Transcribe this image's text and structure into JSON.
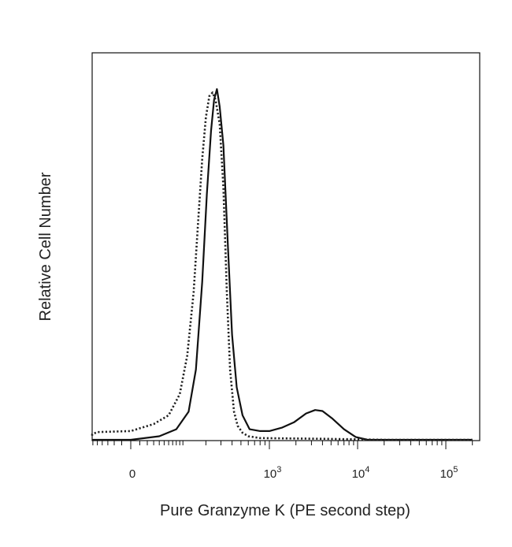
{
  "chart_data": {
    "type": "line",
    "title": "",
    "xlabel": "Pure Granzyme K (PE second step)",
    "ylabel": "Relative Cell Number",
    "x_scale": "biexponential",
    "y_ticks_visible": false,
    "grid": false,
    "legend": "none",
    "ylim": [
      0,
      1
    ],
    "x_ticks": [
      {
        "value": 0,
        "base": "0",
        "exp": ""
      },
      {
        "value": 1000,
        "base": "10",
        "exp": "3"
      },
      {
        "value": 10000,
        "base": "10",
        "exp": "4"
      },
      {
        "value": 100000,
        "base": "10",
        "exp": "5"
      }
    ],
    "series": [
      {
        "style": "solid",
        "color": "#111111",
        "points": [
          [
            -300,
            0.0
          ],
          [
            0,
            0.0
          ],
          [
            40,
            0.01
          ],
          [
            80,
            0.03
          ],
          [
            120,
            0.08
          ],
          [
            150,
            0.2
          ],
          [
            180,
            0.45
          ],
          [
            205,
            0.7
          ],
          [
            230,
            0.88
          ],
          [
            250,
            0.97
          ],
          [
            270,
            1.0
          ],
          [
            290,
            0.95
          ],
          [
            320,
            0.84
          ],
          [
            360,
            0.55
          ],
          [
            400,
            0.3
          ],
          [
            450,
            0.15
          ],
          [
            520,
            0.07
          ],
          [
            620,
            0.03
          ],
          [
            800,
            0.025
          ],
          [
            1000,
            0.025
          ],
          [
            1400,
            0.035
          ],
          [
            1900,
            0.05
          ],
          [
            2600,
            0.075
          ],
          [
            3300,
            0.085
          ],
          [
            4000,
            0.082
          ],
          [
            5200,
            0.06
          ],
          [
            7000,
            0.03
          ],
          [
            9500,
            0.008
          ],
          [
            13000,
            0.0
          ],
          [
            200000,
            0.0
          ]
        ]
      },
      {
        "style": "dotted",
        "color": "#222222",
        "points": [
          [
            -300,
            0.012
          ],
          [
            -150,
            0.012
          ],
          [
            -100,
            0.016
          ],
          [
            -50,
            0.022
          ],
          [
            0,
            0.025
          ],
          [
            30,
            0.045
          ],
          [
            60,
            0.07
          ],
          [
            90,
            0.13
          ],
          [
            115,
            0.24
          ],
          [
            140,
            0.42
          ],
          [
            160,
            0.62
          ],
          [
            180,
            0.8
          ],
          [
            200,
            0.92
          ],
          [
            220,
            0.98
          ],
          [
            240,
            0.99
          ],
          [
            260,
            0.97
          ],
          [
            290,
            0.9
          ],
          [
            320,
            0.72
          ],
          [
            350,
            0.42
          ],
          [
            380,
            0.2
          ],
          [
            420,
            0.08
          ],
          [
            460,
            0.04
          ],
          [
            520,
            0.02
          ],
          [
            600,
            0.01
          ],
          [
            800,
            0.005
          ],
          [
            1500,
            0.004
          ],
          [
            4000,
            0.003
          ],
          [
            20000,
            0.0
          ],
          [
            200000,
            0.0
          ]
        ]
      }
    ]
  }
}
